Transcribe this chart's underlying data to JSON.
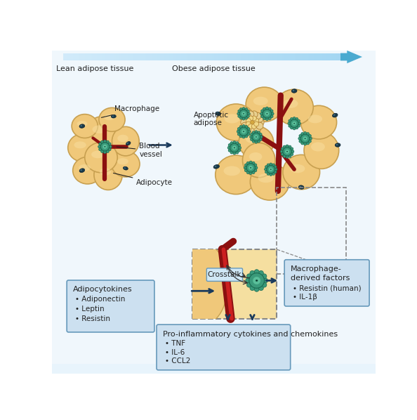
{
  "bg_color": "#ffffff",
  "bg_gradient_top": "#e8f4fc",
  "adipocyte_fill": "#f0c87a",
  "adipocyte_edge": "#c8a050",
  "adipocyte_highlight": "#f8dfa0",
  "blood_vessel_color": "#8b1010",
  "macrophage_fill": "#3a9a7a",
  "macrophage_edge": "#1a6a50",
  "macrophage_inner": "#5abf9a",
  "small_macro_fill": "#1a3a4a",
  "small_macro_edge": "#0a2030",
  "small_macro_highlight": "#4a7a90",
  "apoptotic_fill": "#d4a840",
  "apoptotic_small_fill": "#e8d090",
  "apoptotic_edge": "#b08030",
  "zoom_bg": "#f5dfa0",
  "zoom_edge": "#999999",
  "box_fill": "#cce0f0",
  "box_edge": "#6699bb",
  "arrow_color": "#1a3a5c",
  "text_color": "#222222",
  "lean_label": "Lean adipose tissue",
  "obese_label": "Obese adipose tissue",
  "adipocyte_label": "Adipocyte",
  "blood_vessel_label": "Blood\nvessel",
  "macrophage_label": "Macrophage",
  "apoptotic_label": "Apoptotic\nadipose",
  "crosstalk_label": "Crosstalk",
  "adipocytokines_title": "Adipocytokines",
  "adipocytokines_items": [
    "Adiponectin",
    "Leptin",
    "Resistin"
  ],
  "macrophage_factors_title": "Macrophage-\nderived factors",
  "macrophage_factors_items": [
    "Resistin (human)",
    "IL-1β"
  ],
  "pro_inflammatory_title": "Pro-inflammatory cytokines and chemokines",
  "pro_inflammatory_items": [
    "TNF",
    "IL-6",
    "CCL2"
  ]
}
